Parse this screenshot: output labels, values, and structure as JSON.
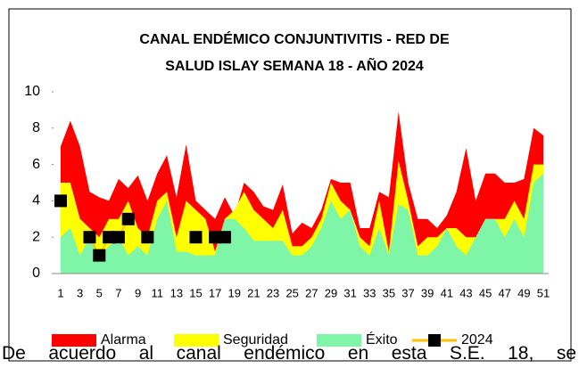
{
  "chart_data": {
    "type": "area",
    "title": [
      "CANAL ENDÉMICO CONJUNTIVITIS - RED DE",
      "SALUD ISLAY SEMANA 18 -  AÑO 2024"
    ],
    "categories": [
      1,
      null,
      3,
      null,
      5,
      null,
      7,
      null,
      9,
      null,
      11,
      null,
      13,
      null,
      15,
      null,
      17,
      null,
      19,
      null,
      21,
      null,
      23,
      null,
      25,
      null,
      27,
      null,
      29,
      null,
      31,
      null,
      33,
      null,
      35,
      null,
      37,
      null,
      39,
      null,
      41,
      null,
      43,
      null,
      45,
      null,
      47,
      null,
      49,
      null,
      51
    ],
    "ylim": [
      0,
      10
    ],
    "yticks": [
      0,
      2,
      4,
      6,
      8,
      10
    ],
    "grid": false,
    "legend": "bottom",
    "series": [
      {
        "name": "Alarma",
        "color": "#ff0000",
        "values": [
          7,
          8.4,
          7,
          4.5,
          4.2,
          4,
          5.2,
          4.7,
          5.4,
          4,
          5.5,
          6.5,
          4.2,
          7.1,
          4,
          3.5,
          3,
          4.2,
          3.2,
          5,
          4.5,
          3.7,
          3.5,
          4.9,
          2.2,
          2.8,
          2.5,
          3.5,
          5.2,
          5,
          5,
          2.5,
          2.5,
          4.5,
          4.2,
          8.9,
          5,
          3,
          3,
          2.5,
          3.2,
          4.5,
          6.9,
          4,
          5.5,
          5.5,
          5,
          5,
          5.2,
          8,
          7.6
        ]
      },
      {
        "name": "Seguridad",
        "color": "#ffff00",
        "values": [
          5,
          5,
          3,
          2.5,
          2,
          3,
          3,
          4,
          2.5,
          2,
          4,
          4.5,
          2,
          4,
          3.5,
          3,
          1.2,
          3,
          3.5,
          4.5,
          3.5,
          3,
          2.5,
          3.5,
          1.5,
          1.5,
          2,
          3,
          5,
          4,
          3.5,
          2,
          1.5,
          4,
          1.2,
          6.2,
          4,
          1.5,
          2,
          2,
          2.5,
          2.5,
          2,
          2,
          3,
          3,
          3,
          4,
          3,
          6,
          6
        ]
      },
      {
        "name": "Éxito",
        "color": "#7ff5a8",
        "values": [
          2,
          2.5,
          1,
          2,
          1,
          1.5,
          2,
          1,
          1.5,
          1,
          3,
          4,
          1.2,
          1.2,
          1,
          1,
          1,
          3,
          3,
          2.5,
          1.8,
          1.8,
          1.8,
          1.8,
          1,
          1,
          1.5,
          2.5,
          4,
          3,
          3.5,
          1.5,
          1,
          2.5,
          1,
          3.8,
          3.5,
          1,
          1,
          1.5,
          2.5,
          1.5,
          1,
          2,
          3,
          3,
          2,
          3,
          2,
          5,
          5.5
        ]
      },
      {
        "name": "2024",
        "color": "#ffc000",
        "type": "line",
        "marker": "#000000",
        "values": [
          4,
          null,
          null,
          2,
          1,
          2,
          2,
          3,
          null,
          2,
          null,
          null,
          null,
          null,
          2,
          null,
          2,
          2,
          null,
          null,
          null,
          null,
          null,
          null,
          null,
          null,
          null,
          null,
          null,
          null,
          null,
          null,
          null,
          null,
          null,
          null,
          null,
          null,
          null,
          null,
          null,
          null,
          null,
          null,
          null,
          null,
          null,
          null,
          null,
          null,
          null
        ]
      }
    ]
  },
  "paragraph": "De acuerdo al canal endémico en esta S.E. 18, se"
}
